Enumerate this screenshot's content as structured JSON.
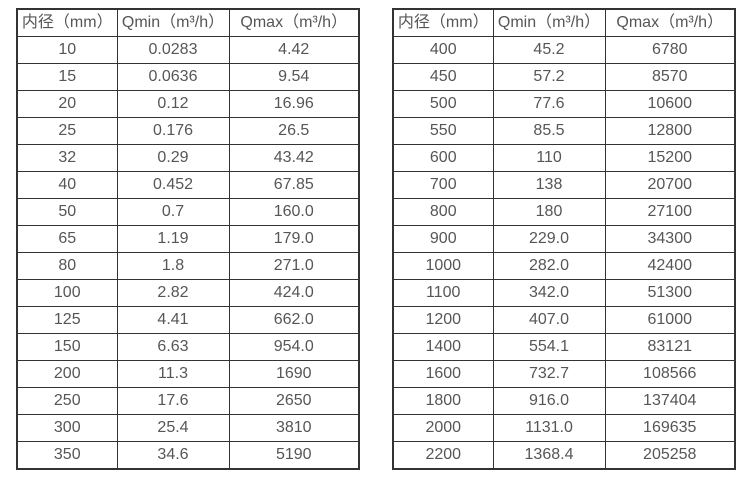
{
  "page": {
    "background_color": "#ffffff",
    "text_color": "#565656",
    "border_color": "#333333"
  },
  "chart_data": [
    {
      "type": "table",
      "columns": [
        "内径（mm）",
        "Qmin（m³/h）",
        "Qmax（m³/h）"
      ],
      "rows": [
        [
          "10",
          "0.0283",
          "4.42"
        ],
        [
          "15",
          "0.0636",
          "9.54"
        ],
        [
          "20",
          "0.12",
          "16.96"
        ],
        [
          "25",
          "0.176",
          "26.5"
        ],
        [
          "32",
          "0.29",
          "43.42"
        ],
        [
          "40",
          "0.452",
          "67.85"
        ],
        [
          "50",
          "0.7",
          "160.0"
        ],
        [
          "65",
          "1.19",
          "179.0"
        ],
        [
          "80",
          "1.8",
          "271.0"
        ],
        [
          "100",
          "2.82",
          "424.0"
        ],
        [
          "125",
          "4.41",
          "662.0"
        ],
        [
          "150",
          "6.63",
          "954.0"
        ],
        [
          "200",
          "11.3",
          "1690"
        ],
        [
          "250",
          "17.6",
          "2650"
        ],
        [
          "300",
          "25.4",
          "3810"
        ],
        [
          "350",
          "34.6",
          "5190"
        ]
      ]
    },
    {
      "type": "table",
      "columns": [
        "内径（mm）",
        "Qmin（m³/h）",
        "Qmax（m³/h）"
      ],
      "rows": [
        [
          "400",
          "45.2",
          "6780"
        ],
        [
          "450",
          "57.2",
          "8570"
        ],
        [
          "500",
          "77.6",
          "10600"
        ],
        [
          "550",
          "85.5",
          "12800"
        ],
        [
          "600",
          "110",
          "15200"
        ],
        [
          "700",
          "138",
          "20700"
        ],
        [
          "800",
          "180",
          "27100"
        ],
        [
          "900",
          "229.0",
          "34300"
        ],
        [
          "1000",
          "282.0",
          "42400"
        ],
        [
          "1100",
          "342.0",
          "51300"
        ],
        [
          "1200",
          "407.0",
          "61000"
        ],
        [
          "1400",
          "554.1",
          "83121"
        ],
        [
          "1600",
          "732.7",
          "108566"
        ],
        [
          "1800",
          "916.0",
          "137404"
        ],
        [
          "2000",
          "1131.0",
          "169635"
        ],
        [
          "2200",
          "1368.4",
          "205258"
        ]
      ]
    }
  ]
}
